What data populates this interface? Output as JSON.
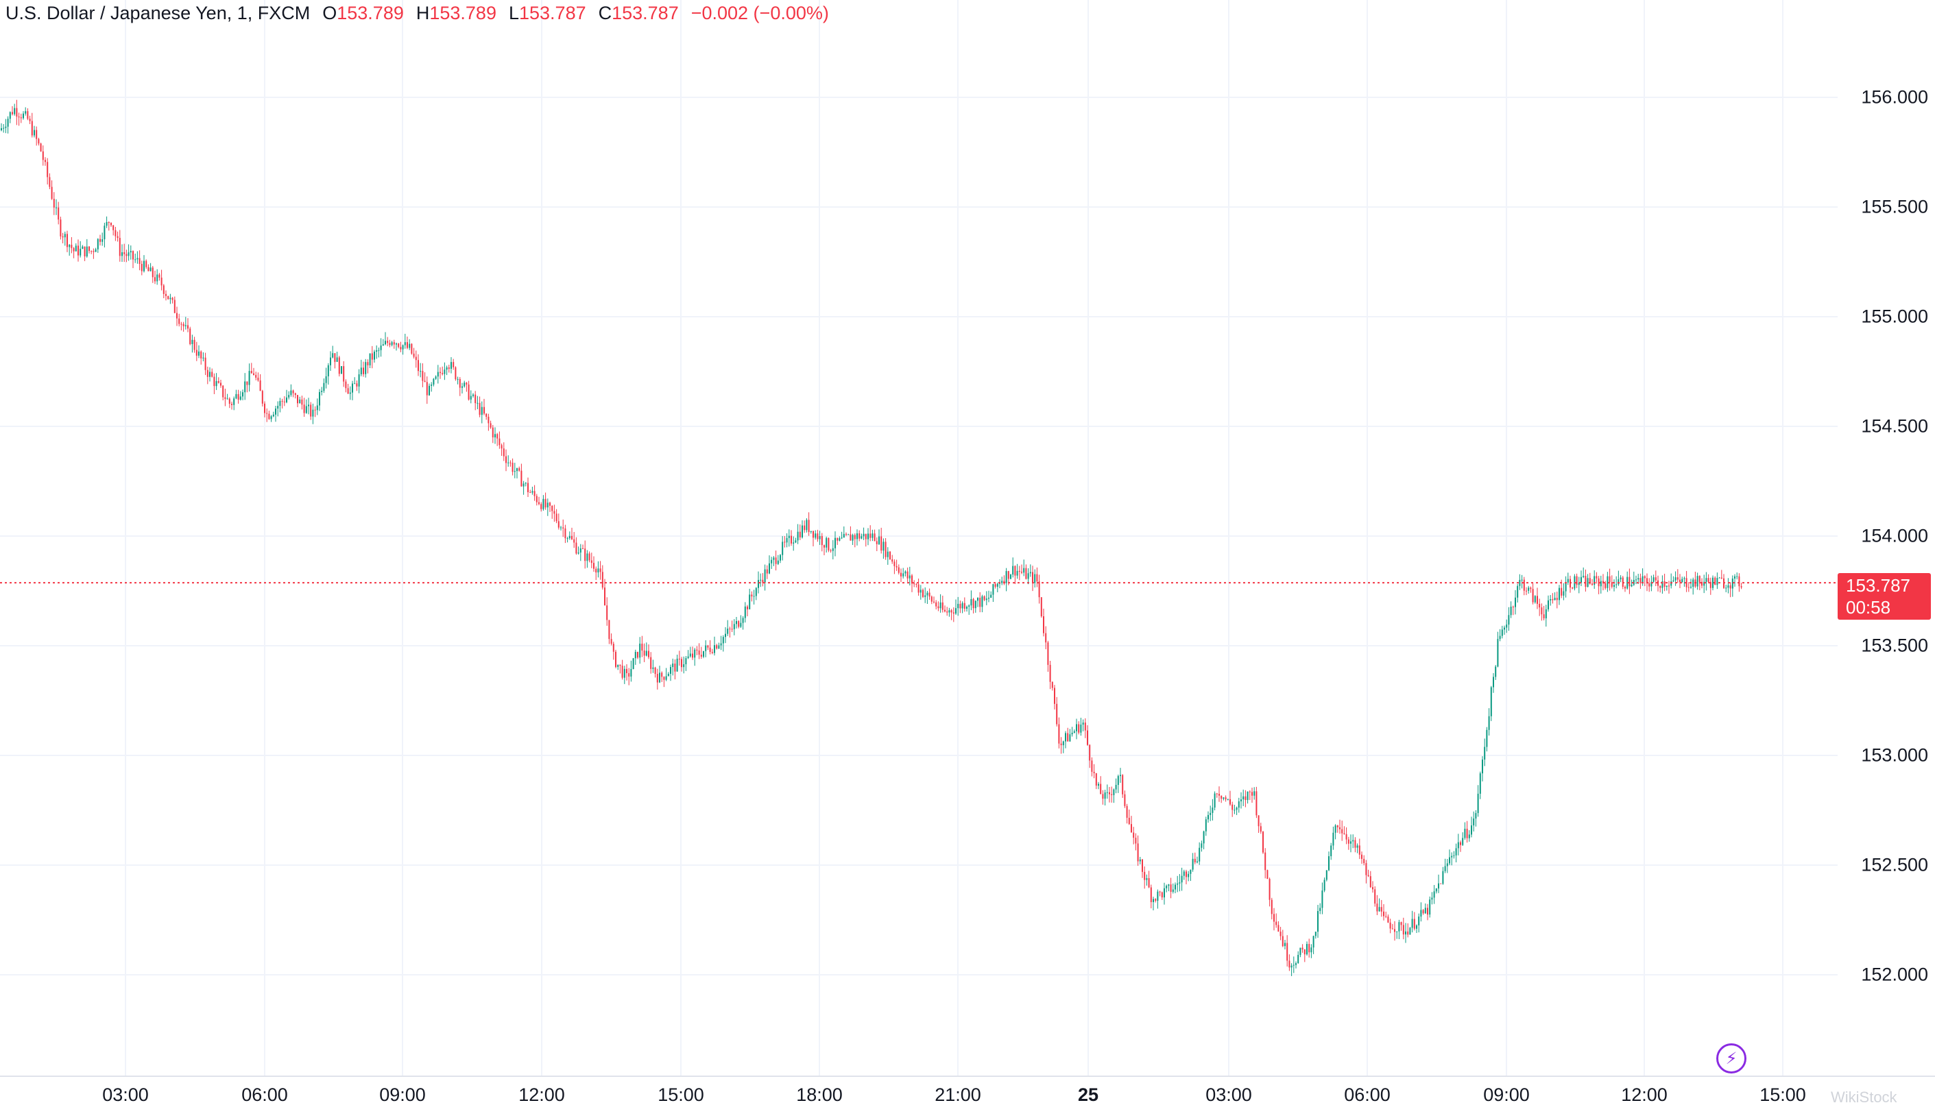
{
  "legend": {
    "symbol": "U.S. Dollar / Japanese Yen, 1, FXCM",
    "open_label": "O",
    "open": "153.789",
    "high_label": "H",
    "high": "153.789",
    "low_label": "L",
    "low": "153.787",
    "close_label": "C",
    "close": "153.787",
    "change": "−0.002 (−0.00%)"
  },
  "current_price": {
    "value": "153.787",
    "countdown": "00:58",
    "level": 153.787
  },
  "watermark": "WikiStock",
  "colors": {
    "up": "#089981",
    "down": "#f23645",
    "grid": "#f0f3fa",
    "price_line": "#f23645"
  },
  "chart_data": {
    "type": "candlestick",
    "title": "U.S. Dollar / Japanese Yen, 1, FXCM",
    "interval": "1 minute",
    "ylim": [
      151.6,
      156.2
    ],
    "y_ticks": [
      "156.000",
      "155.500",
      "155.000",
      "154.500",
      "154.000",
      "153.500",
      "153.000",
      "152.500",
      "152.000"
    ],
    "x_ticks": [
      "03:00",
      "06:00",
      "09:00",
      "12:00",
      "15:00",
      "18:00",
      "21:00",
      "25",
      "03:00",
      "06:00",
      "09:00",
      "12:00",
      "15:00"
    ],
    "grid": true,
    "price_path": {
      "hours_since_start": [
        0,
        0.3,
        0.6,
        0.9,
        1.3,
        1.6,
        2.0,
        2.4,
        2.6,
        3.0,
        3.5,
        4.0,
        4.5,
        5.0,
        5.5,
        5.8,
        6.3,
        6.8,
        7.2,
        7.6,
        8.0,
        8.5,
        8.9,
        9.3,
        9.7,
        10.0,
        10.5,
        11.0,
        11.5,
        12.0,
        12.5,
        13.0,
        13.3,
        13.6,
        13.9,
        14.3,
        14.6,
        15.0,
        15.5,
        16.0,
        16.5,
        17.0,
        17.5,
        18.0,
        18.5,
        19.0,
        19.5,
        20.0,
        20.5,
        21.0,
        21.4,
        21.7,
        22.0,
        22.5,
        23.0,
        23.5,
        23.8,
        24.0,
        24.3,
        24.6,
        25.0,
        25.5,
        26.0,
        26.4,
        26.8,
        27.2,
        27.6,
        28.0,
        28.5,
        29.0,
        29.5,
        30.0,
        30.5,
        31.0,
        31.5,
        32.0,
        32.5,
        33.0,
        33.5,
        34.0,
        34.5,
        35.0,
        35.5,
        36.0,
        36.4,
        36.7,
        37.0,
        37.2,
        37.5,
        37.8
      ],
      "prices": [
        155.85,
        155.95,
        155.9,
        155.75,
        155.4,
        155.3,
        155.3,
        155.45,
        155.3,
        155.25,
        155.15,
        154.95,
        154.75,
        154.6,
        154.75,
        154.55,
        154.65,
        154.55,
        154.85,
        154.65,
        154.8,
        154.9,
        154.85,
        154.65,
        154.8,
        154.7,
        154.55,
        154.35,
        154.2,
        154.1,
        153.95,
        153.85,
        153.45,
        153.35,
        153.5,
        153.35,
        153.4,
        153.45,
        153.5,
        153.6,
        153.8,
        153.95,
        154.05,
        153.95,
        154.0,
        154.0,
        153.85,
        153.75,
        153.65,
        153.7,
        153.7,
        153.8,
        153.85,
        153.8,
        153.05,
        153.15,
        152.85,
        152.8,
        152.9,
        152.6,
        152.35,
        152.4,
        152.55,
        152.85,
        152.75,
        152.85,
        152.3,
        152.05,
        152.15,
        152.7,
        152.55,
        152.25,
        152.2,
        152.3,
        152.55,
        152.7,
        153.5,
        153.8,
        153.65,
        153.79,
        153.79,
        153.79,
        153.79,
        153.79,
        153.79,
        153.79,
        153.79,
        153.79,
        153.79,
        153.787
      ]
    },
    "last": 153.787
  }
}
